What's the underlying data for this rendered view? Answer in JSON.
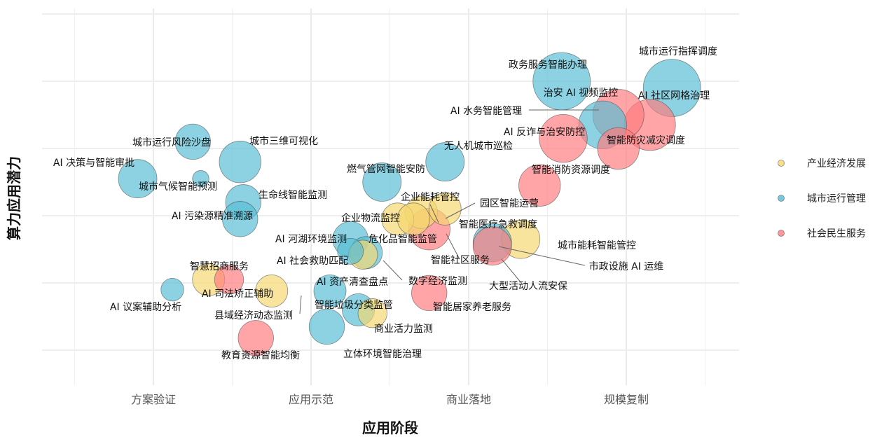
{
  "chart_data": {
    "type": "scatter",
    "title": "",
    "xlabel": "应用阶段",
    "ylabel": "算力应用潜力",
    "x_categories": [
      "方案验证",
      "应用示范",
      "商业落地",
      "规模复制"
    ],
    "grid": true,
    "legend_position": "right",
    "series": [
      {
        "name": "产业经济发展",
        "color": "#F5D76E"
      },
      {
        "name": "城市运行管理",
        "color": "#56BCD4"
      },
      {
        "name": "社会民生服务",
        "color": "#FF7B7E"
      }
    ],
    "points": [
      {
        "label": "城市运行指挥调度",
        "series": "城市运行管理",
        "x": 4.29,
        "y": 4.4,
        "size": 8
      },
      {
        "label": "政务服务智能办理",
        "series": "城市运行管理",
        "x": 3.59,
        "y": 4.5,
        "size": 8
      },
      {
        "label": "AI 社区网格治理",
        "series": "社会民生服务",
        "x": 4.15,
        "y": 3.85,
        "size": 7
      },
      {
        "label": "治安 AI 视频监控",
        "series": "社会民生服务",
        "x": 3.95,
        "y": 4.0,
        "size": 7
      },
      {
        "label": "AI 水务智能管理",
        "series": "城市运行管理",
        "x": 3.85,
        "y": 3.85,
        "size": 6.5
      },
      {
        "label": "AI 反诈与治安防控",
        "series": "社会民生服务",
        "x": 3.6,
        "y": 3.65,
        "size": 6.5
      },
      {
        "label": "智能防灾减灾调度",
        "series": "社会民生服务",
        "x": 3.95,
        "y": 3.5,
        "size": 5.5
      },
      {
        "label": "无人机城市巡检",
        "series": "城市运行管理",
        "x": 2.85,
        "y": 3.3,
        "size": 5
      },
      {
        "label": "智能消防资源调度",
        "series": "社会民生服务",
        "x": 3.45,
        "y": 2.95,
        "size": 5.5
      },
      {
        "label": "燃气管网智能安防",
        "series": "城市运行管理",
        "x": 2.45,
        "y": 3.0,
        "size": 5
      },
      {
        "label": "城市三维可视化",
        "series": "城市运行管理",
        "x": 1.55,
        "y": 3.3,
        "size": 5.5
      },
      {
        "label": "城市运行风险沙盘",
        "series": "城市运行管理",
        "x": 1.25,
        "y": 3.6,
        "size": 4.5
      },
      {
        "label": "AI 决策与智能审批",
        "series": "城市运行管理",
        "x": 0.9,
        "y": 3.05,
        "size": 5
      },
      {
        "label": "城市气候智能预测",
        "series": "城市运行管理",
        "x": 1.3,
        "y": 3.05,
        "size": 1.5
      },
      {
        "label": "生命线智能监测",
        "series": "城市运行管理",
        "x": 1.57,
        "y": 2.7,
        "size": 4.5
      },
      {
        "label": "AI 污染源精准溯源",
        "series": "城市运行管理",
        "x": 1.55,
        "y": 2.45,
        "size": 4.5
      },
      {
        "label": "企业能耗管控",
        "series": "产业经济发展",
        "x": 2.7,
        "y": 2.55,
        "size": 4
      },
      {
        "label": "园区智能运营",
        "series": "产业经济发展",
        "x": 2.85,
        "y": 2.6,
        "size": 4
      },
      {
        "label": "企业物流监控",
        "series": "产业经济发展",
        "x": 2.55,
        "y": 2.45,
        "size": 4
      },
      {
        "label": "智能医疗急救调度",
        "series": "社会民生服务",
        "x": 2.75,
        "y": 2.3,
        "size": 5.5
      },
      {
        "label": "智能社区服务",
        "series": "产业经济发展",
        "x": 2.65,
        "y": 2.45,
        "size": 4
      },
      {
        "label": "城市能耗智能管控",
        "series": "产业经济发展",
        "x": 3.33,
        "y": 2.15,
        "size": 5
      },
      {
        "label": "市政设施 AI 运维",
        "series": "城市运行管理",
        "x": 3.15,
        "y": 2.1,
        "size": 5
      },
      {
        "label": "大型活动人流安保",
        "series": "社会民生服务",
        "x": 3.15,
        "y": 2.05,
        "size": 5
      },
      {
        "label": "AI 河湖环境监测",
        "series": "城市运行管理",
        "x": 2.25,
        "y": 2.15,
        "size": 4.5
      },
      {
        "label": "危化品智能监管",
        "series": "城市运行管理",
        "x": 2.35,
        "y": 1.95,
        "size": 4
      },
      {
        "label": "AI 社会救助匹配",
        "series": "城市运行管理",
        "x": 2.25,
        "y": 1.97,
        "size": 3
      },
      {
        "label": "数字经济监测",
        "series": "产业经济发展",
        "x": 2.33,
        "y": 1.92,
        "size": 3.5
      },
      {
        "label": "智慧招商服务",
        "series": "产业经济发展",
        "x": 1.35,
        "y": 1.55,
        "size": 4
      },
      {
        "label": "AI 司法矫正辅助",
        "series": "社会民生服务",
        "x": 1.48,
        "y": 1.55,
        "size": 3.5
      },
      {
        "label": "AI 议案辅助分析",
        "series": "城市运行管理",
        "x": 1.12,
        "y": 1.4,
        "size": 2.5
      },
      {
        "label": "AI 资产清查盘点",
        "series": "城市运行管理",
        "x": 2.12,
        "y": 1.38,
        "size": 4
      },
      {
        "label": "县域经济动态监测",
        "series": "产业经济发展",
        "x": 1.75,
        "y": 1.38,
        "size": 4
      },
      {
        "label": "智能垃圾分类监管",
        "series": "城市运行管理",
        "x": 2.3,
        "y": 1.1,
        "size": 4
      },
      {
        "label": "商业活力监测",
        "series": "产业经济发展",
        "x": 2.39,
        "y": 1.05,
        "size": 3.5
      },
      {
        "label": "智能居家养老服务",
        "series": "社会民生服务",
        "x": 2.75,
        "y": 1.35,
        "size": 4.5
      },
      {
        "label": "立体环境智能治理",
        "series": "城市运行管理",
        "x": 2.1,
        "y": 0.85,
        "size": 4.5
      },
      {
        "label": "教育资源智能均衡",
        "series": "社会民生服务",
        "x": 1.65,
        "y": 0.68,
        "size": 4.5
      }
    ]
  }
}
